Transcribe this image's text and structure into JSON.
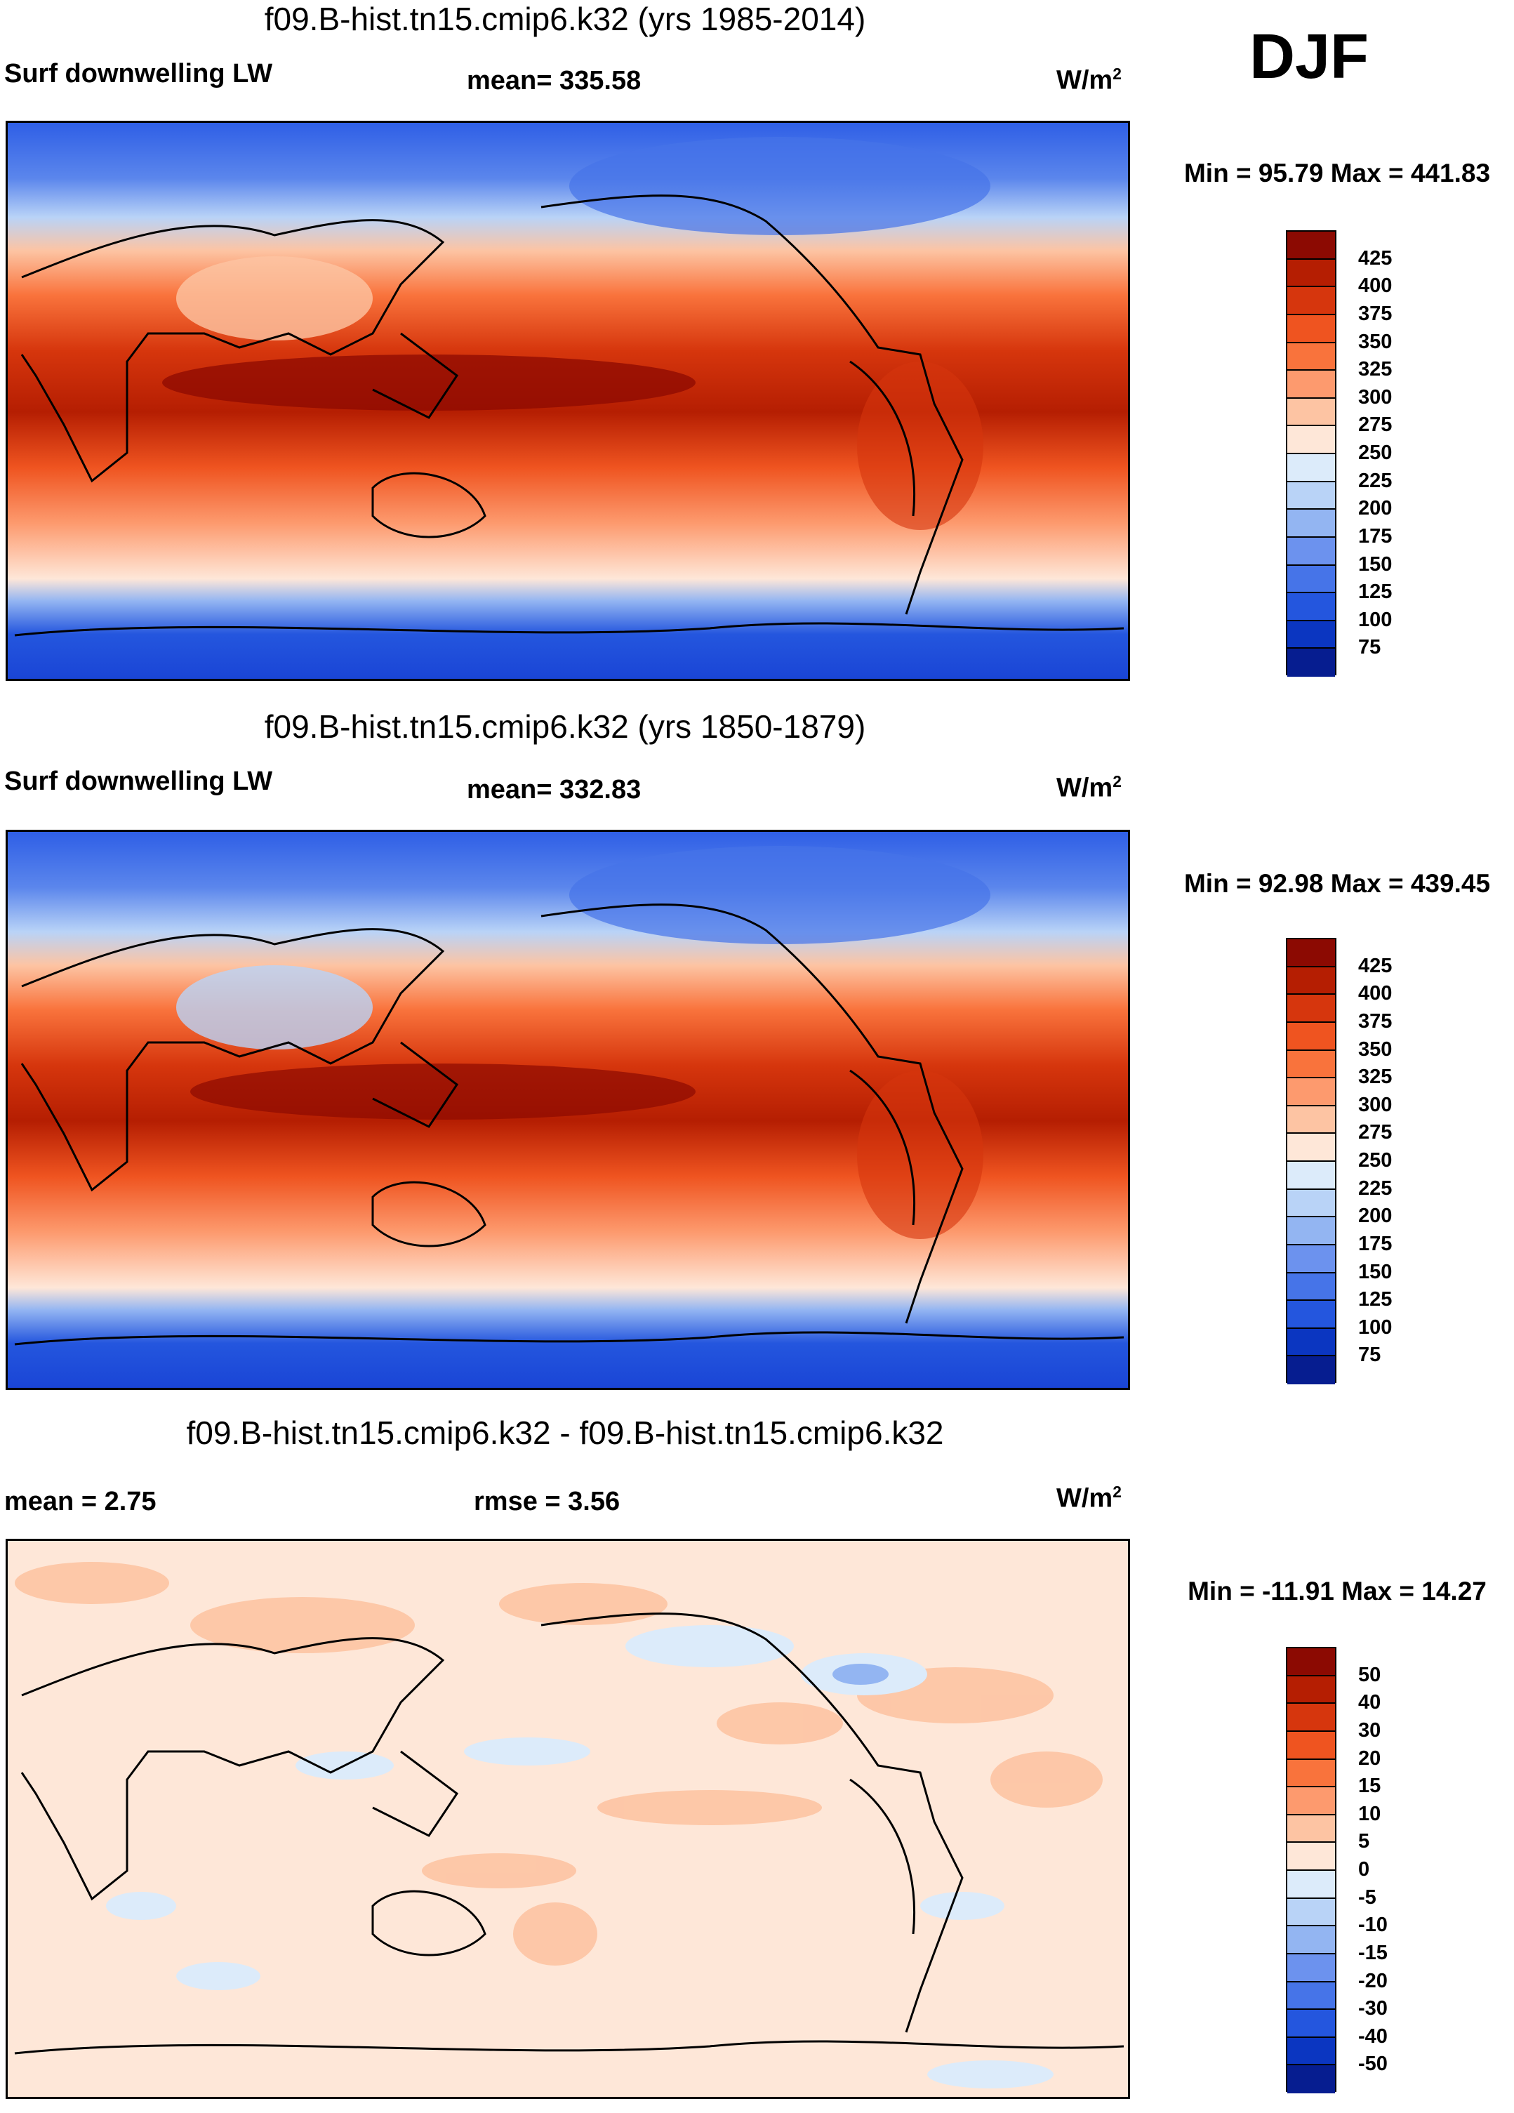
{
  "season": "DJF",
  "panels": [
    {
      "title": "f09.B-hist.tn15.cmip6.k32 (yrs 1985-2014)",
      "variable": "Surf downwelling LW",
      "stat_text": "mean= 335.58",
      "units": "W/m",
      "units_exp": "2",
      "minmax": "Min =  95.79 Max = 441.83",
      "colorbar": {
        "labels": [
          "425",
          "400",
          "375",
          "350",
          "325",
          "300",
          "275",
          "250",
          "225",
          "200",
          "175",
          "150",
          "125",
          "100",
          "75"
        ],
        "colors": [
          "#8c0a02",
          "#b51e02",
          "#d6360d",
          "#ef5420",
          "#f9733c",
          "#fd9a6e",
          "#fdc4a3",
          "#fee7d8",
          "#dcebfa",
          "#b9d3f7",
          "#93b5f2",
          "#6c92ee",
          "#4674e8",
          "#2456de",
          "#0b36c1",
          "#061d90"
        ]
      }
    },
    {
      "title": "f09.B-hist.tn15.cmip6.k32 (yrs 1850-1879)",
      "variable": "Surf downwelling LW",
      "stat_text": "mean= 332.83",
      "units": "W/m",
      "units_exp": "2",
      "minmax": "Min =  92.98 Max = 439.45",
      "colorbar": {
        "labels": [
          "425",
          "400",
          "375",
          "350",
          "325",
          "300",
          "275",
          "250",
          "225",
          "200",
          "175",
          "150",
          "125",
          "100",
          "75"
        ],
        "colors": [
          "#8c0a02",
          "#b51e02",
          "#d6360d",
          "#ef5420",
          "#f9733c",
          "#fd9a6e",
          "#fdc4a3",
          "#fee7d8",
          "#dcebfa",
          "#b9d3f7",
          "#93b5f2",
          "#6c92ee",
          "#4674e8",
          "#2456de",
          "#0b36c1",
          "#061d90"
        ]
      }
    },
    {
      "title": "f09.B-hist.tn15.cmip6.k32 - f09.B-hist.tn15.cmip6.k32",
      "variable_left": "mean =   2.75",
      "stat_text": "rmse =   3.56",
      "units": "W/m",
      "units_exp": "2",
      "minmax": "Min = -11.91 Max =  14.27",
      "colorbar": {
        "labels": [
          "50",
          "40",
          "30",
          "20",
          "15",
          "10",
          "5",
          "0",
          "-5",
          "-10",
          "-15",
          "-20",
          "-30",
          "-40",
          "-50"
        ],
        "colors": [
          "#8c0a02",
          "#b51e02",
          "#d6360d",
          "#ef5420",
          "#f9733c",
          "#fd9a6e",
          "#fdc4a3",
          "#fee7d8",
          "#dcebfa",
          "#b9d3f7",
          "#93b5f2",
          "#6c92ee",
          "#4674e8",
          "#2456de",
          "#0b36c1",
          "#061d90"
        ]
      }
    }
  ]
}
